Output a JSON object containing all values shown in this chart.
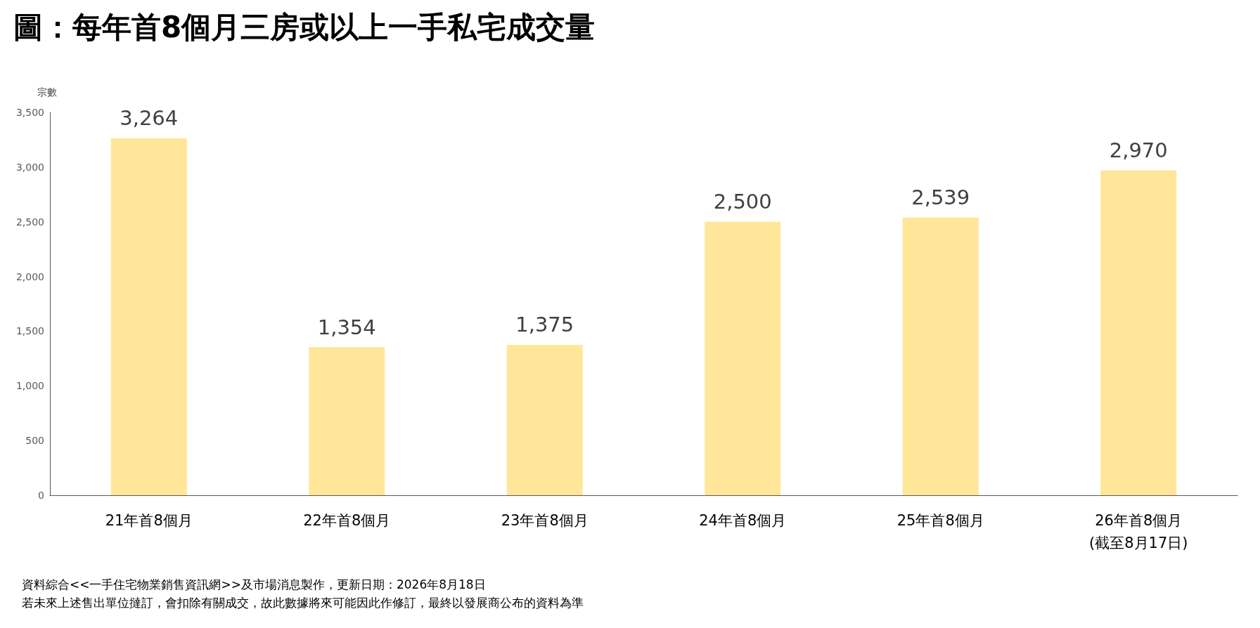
{
  "chart_data": {
    "type": "bar",
    "title": "圖：每年首8個月三房或以上一手私宅成交量",
    "ylabel": "宗數",
    "categories": [
      "21年首8個月",
      "22年首8個月",
      "23年首8個月",
      "24年首8個月",
      "25年首8個月",
      "26年首8個月\n(截至8月17日)"
    ],
    "values": [
      3264,
      1354,
      1375,
      2500,
      2539,
      2970
    ],
    "color": "#ffe699",
    "value_labels": [
      "3,264",
      "1,354",
      "1,375",
      "2,500",
      "2,539",
      "2,970"
    ],
    "ylim": [
      0,
      3500
    ],
    "yticks": [
      0,
      {
        "value": 500,
        "label": "500"
      },
      {
        "value": 1000,
        "label": "1,000"
      },
      {
        "value": 1500,
        "label": "1,500"
      },
      {
        "value": 2000,
        "label": "2,000"
      },
      {
        "value": 2500,
        "label": "2,500"
      },
      {
        "value": 3000,
        "label": "3,000"
      },
      {
        "value": 3500,
        "label": "3,500"
      }
    ],
    "grid": false,
    "annotations": [
      "資料綜合<<一手住宅物業銷售資訊網>>及市場消息製作，更新日期：2026年8月18日",
      "若未來上述售出單位撻訂，會扣除有關成交，故此數據將來可能因此作修訂，最終以發展商公布的資料為準"
    ]
  }
}
